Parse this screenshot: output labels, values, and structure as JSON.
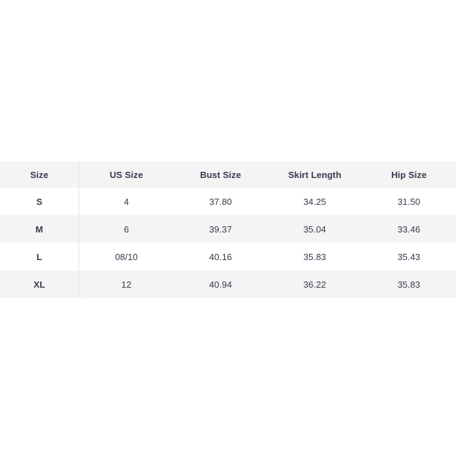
{
  "size_chart": {
    "columns": [
      {
        "label": "Size"
      },
      {
        "label": "US Size"
      },
      {
        "label": "Bust Size"
      },
      {
        "label": "Skirt Length"
      },
      {
        "label": "Hip Size"
      }
    ],
    "rows": [
      {
        "cells": [
          "S",
          "4",
          "37.80",
          "34.25",
          "31.50"
        ]
      },
      {
        "cells": [
          "M",
          "6",
          "39.37",
          "35.04",
          "33.46"
        ]
      },
      {
        "cells": [
          "L",
          "08/10",
          "40.16",
          "35.83",
          "35.43"
        ]
      },
      {
        "cells": [
          "XL",
          "12",
          "40.94",
          "36.22",
          "35.83"
        ]
      }
    ]
  },
  "colors": {
    "header_background": "#f4f4f5",
    "stripe_background": "#f4f4f5",
    "row_background": "#ffffff",
    "text": "#353b4c",
    "divider": "#e4e4e6"
  }
}
